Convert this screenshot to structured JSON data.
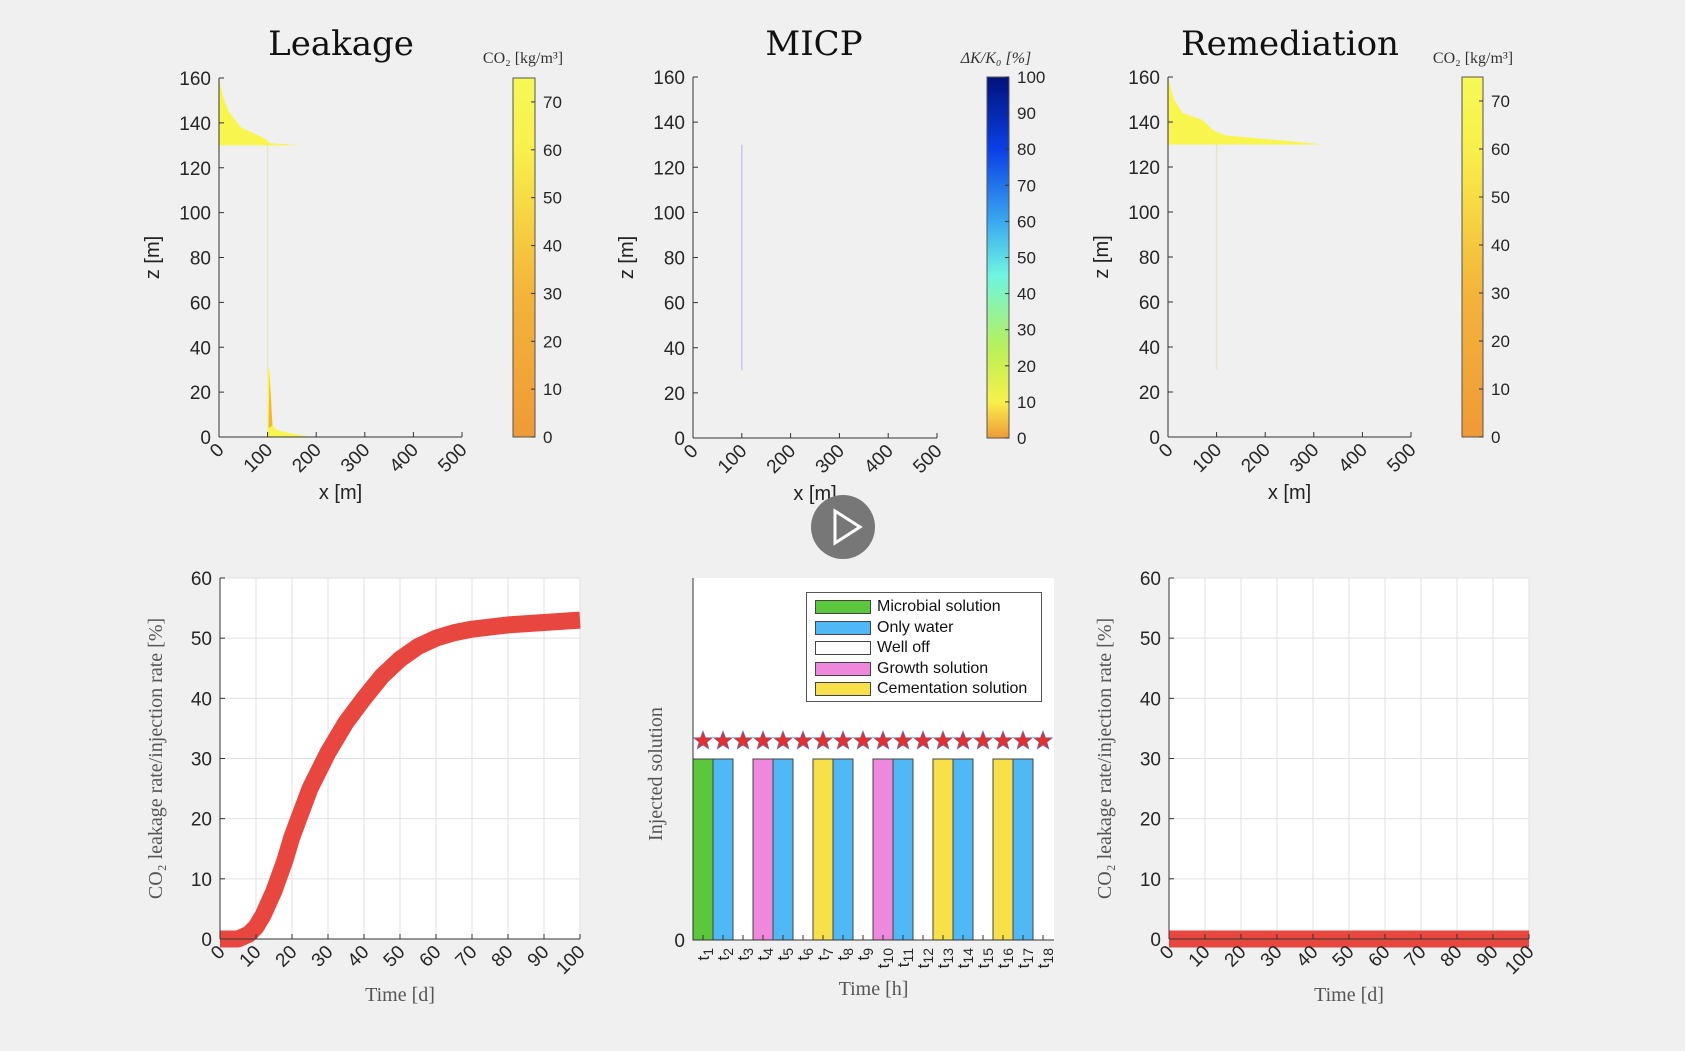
{
  "panels": {
    "leakage": {
      "title": "Leakage",
      "colorbar_label": "CO₂ [kg/m³]"
    },
    "micp": {
      "title": "MICP",
      "colorbar_label": "ΔK/K₀ [%]"
    },
    "remediation": {
      "title": "Remediation",
      "colorbar_label": "CO₂ [kg/m³]"
    }
  },
  "video": {
    "play_icon": "play-icon"
  },
  "colors": {
    "background": "#f0f0f0",
    "orange": "#ef9a38",
    "yellow": "#f8f54f",
    "curve": "#e8473f",
    "star": "#e03030"
  },
  "chart_data": [
    {
      "id": "leakage-map",
      "type": "heatmap",
      "xlabel": "x [m]",
      "ylabel": "z [m]",
      "xlim": [
        0,
        500
      ],
      "ylim": [
        160,
        0
      ],
      "xticks": [
        0,
        100,
        200,
        300,
        400,
        500
      ],
      "yticks": [
        0,
        20,
        40,
        60,
        80,
        100,
        120,
        140,
        160
      ],
      "colorbar": {
        "label": "CO₂ [kg/m³]",
        "range": [
          0,
          75
        ],
        "ticks": [
          0,
          10,
          20,
          30,
          40,
          50,
          60,
          70
        ],
        "colormap": "orange-yellow"
      }
    },
    {
      "id": "micp-map",
      "type": "heatmap",
      "xlabel": "x [m]",
      "ylabel": "z [m]",
      "xlim": [
        0,
        500
      ],
      "ylim": [
        160,
        0
      ],
      "xticks": [
        0,
        100,
        200,
        300,
        400,
        500
      ],
      "yticks": [
        0,
        20,
        40,
        60,
        80,
        100,
        120,
        140,
        160
      ],
      "colorbar": {
        "label": "ΔK/K₀ [%]",
        "range": [
          0,
          100
        ],
        "ticks": [
          0,
          10,
          20,
          30,
          40,
          50,
          60,
          70,
          80,
          90,
          100
        ],
        "colormap": "orange-yellow-green-cyan-blue"
      }
    },
    {
      "id": "remediation-map",
      "type": "heatmap",
      "xlabel": "x [m]",
      "ylabel": "z [m]",
      "xlim": [
        0,
        500
      ],
      "ylim": [
        160,
        0
      ],
      "xticks": [
        0,
        100,
        200,
        300,
        400,
        500
      ],
      "yticks": [
        0,
        20,
        40,
        60,
        80,
        100,
        120,
        140,
        160
      ],
      "colorbar": {
        "label": "CO₂ [kg/m³]",
        "range": [
          0,
          75
        ],
        "ticks": [
          0,
          10,
          20,
          30,
          40,
          50,
          60,
          70
        ],
        "colormap": "orange-yellow"
      }
    },
    {
      "id": "leakage-rate",
      "type": "line",
      "xlabel": "Time [d]",
      "ylabel": "CO₂ leakage rate/injection rate [%]",
      "xlim": [
        0,
        100
      ],
      "ylim": [
        0,
        60
      ],
      "grid": true,
      "xticks": [
        0,
        10,
        20,
        30,
        40,
        50,
        60,
        70,
        80,
        90,
        100
      ],
      "yticks": [
        0,
        10,
        20,
        30,
        40,
        50,
        60
      ],
      "x": [
        0,
        5,
        8,
        10,
        12,
        15,
        18,
        20,
        25,
        30,
        35,
        40,
        45,
        50,
        55,
        60,
        65,
        70,
        80,
        90,
        100
      ],
      "y": [
        0,
        0,
        0.8,
        2,
        4,
        8,
        13,
        17,
        25,
        31,
        36,
        40,
        43.7,
        46.5,
        48.6,
        50,
        50.9,
        51.5,
        52.2,
        52.6,
        53
      ]
    },
    {
      "id": "injection-schedule",
      "type": "bar",
      "xlabel": "Time [h]",
      "ylabel": "Injected solution",
      "yticks": [
        0
      ],
      "ylim": [
        0,
        2
      ],
      "categories": [
        "t_1",
        "t_2",
        "t_3",
        "t_4",
        "t_5",
        "t_6",
        "t_7",
        "t_8",
        "t_9",
        "t_10",
        "t_11",
        "t_12",
        "t_13",
        "t_14",
        "t_15",
        "t_16",
        "t_17",
        "t_18"
      ],
      "values": [
        1,
        1,
        0,
        1,
        1,
        0,
        1,
        1,
        0,
        1,
        1,
        0,
        1,
        1,
        0,
        1,
        1,
        0
      ],
      "bar_types": [
        "Microbial solution",
        "Only water",
        "Well off",
        "Growth solution",
        "Only water",
        "Well off",
        "Cementation solution",
        "Only water",
        "Well off",
        "Growth solution",
        "Only water",
        "Well off",
        "Cementation solution",
        "Only water",
        "Well off",
        "Cementation solution",
        "Only water",
        "Well off"
      ],
      "markers": {
        "shape": "star",
        "value": 1.1
      },
      "legend": {
        "placement": "top-right",
        "entries": [
          {
            "name": "Microbial solution",
            "color": "#5cc63c"
          },
          {
            "name": "Only water",
            "color": "#4fb8f5"
          },
          {
            "name": "Well off",
            "color": "#ffffff"
          },
          {
            "name": "Growth solution",
            "color": "#ef88dd"
          },
          {
            "name": "Cementation solution",
            "color": "#f7e04a"
          }
        ]
      }
    },
    {
      "id": "remediation-rate",
      "type": "line",
      "xlabel": "Time [d]",
      "ylabel": "CO₂ leakage rate/injection rate [%]",
      "xlim": [
        0,
        100
      ],
      "ylim": [
        0,
        60
      ],
      "grid": true,
      "xticks": [
        0,
        10,
        20,
        30,
        40,
        50,
        60,
        70,
        80,
        90,
        100
      ],
      "yticks": [
        0,
        10,
        20,
        30,
        40,
        50,
        60
      ],
      "x": [
        0,
        100
      ],
      "y": [
        0,
        0
      ]
    }
  ]
}
